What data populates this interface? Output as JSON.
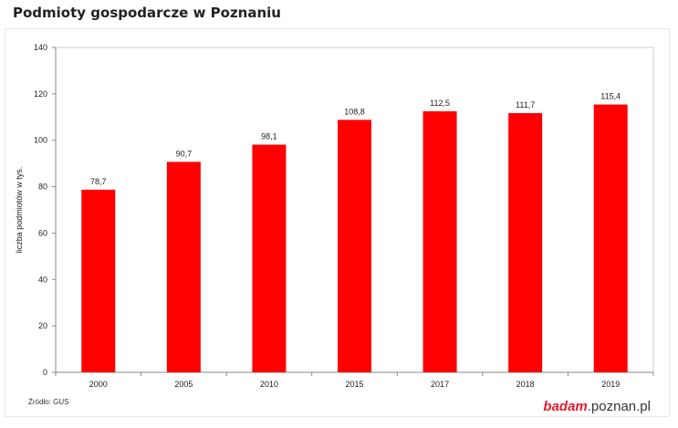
{
  "page": {
    "title": "Podmioty gospodarcze w Poznaniu"
  },
  "source": "Źródło: GUS",
  "logo": {
    "brand": "badam",
    "domain": ".poznan.pl"
  },
  "chart_data": {
    "type": "bar",
    "title": "",
    "xlabel": "",
    "ylabel": "liczba podmiotów w tys.",
    "categories": [
      "2000",
      "2005",
      "2010",
      "2015",
      "2017",
      "2018",
      "2019"
    ],
    "values": [
      78.7,
      90.7,
      98.1,
      108.8,
      112.5,
      111.7,
      115.4
    ],
    "value_labels": [
      "78,7",
      "90,7",
      "98,1",
      "108,8",
      "112,5",
      "111,7",
      "115,4"
    ],
    "ylim": [
      0,
      140
    ],
    "yticks": [
      0,
      20,
      40,
      60,
      80,
      100,
      120,
      140
    ],
    "grid": false,
    "bar_color": "#ff0000"
  }
}
